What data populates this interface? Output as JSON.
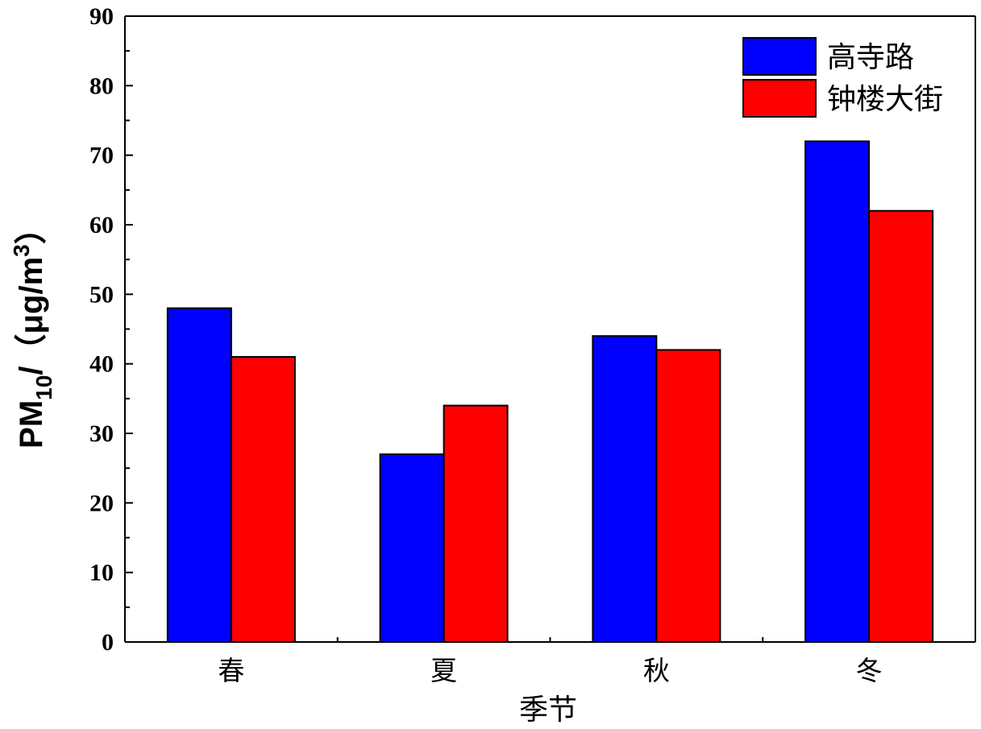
{
  "chart_data": {
    "type": "bar",
    "categories": [
      "春",
      "夏",
      "秋",
      "冬"
    ],
    "series": [
      {
        "name": "高寺路",
        "values": [
          48,
          27,
          44,
          72
        ],
        "color": "#0000ff"
      },
      {
        "name": "钟楼大街",
        "values": [
          41,
          34,
          42,
          62
        ],
        "color": "#ff0000"
      }
    ],
    "xlabel": "季节",
    "ylabel": {
      "main": "PM",
      "sub": "10",
      "unit": "/（μg/m",
      "sup": "3",
      "close": "）"
    },
    "ylim": [
      0,
      90
    ],
    "yticks": [
      "0",
      "10",
      "20",
      "30",
      "40",
      "50",
      "60",
      "70",
      "80",
      "90"
    ],
    "grid": false,
    "legend_position": "top-right"
  }
}
